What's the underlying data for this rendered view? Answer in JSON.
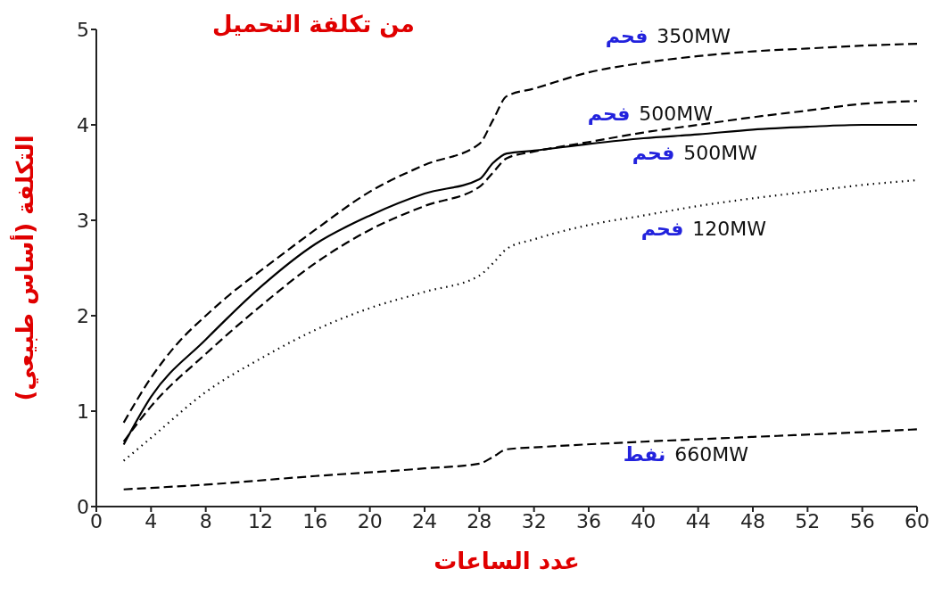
{
  "chart_data": {
    "type": "line",
    "title": "من تكلفة التحميل",
    "xlabel": "عدد الساعات",
    "ylabel": "التكلفة (أساس طبيعي)",
    "xlim": [
      0,
      60
    ],
    "xticks": [
      0,
      4,
      8,
      12,
      16,
      20,
      24,
      28,
      32,
      36,
      40,
      44,
      48,
      52,
      56,
      60
    ],
    "ylim": [
      0,
      5
    ],
    "yticks": [
      0,
      1,
      2,
      3,
      4,
      5
    ],
    "grid": false,
    "legend": false,
    "marker": "none",
    "series": [
      {
        "name": "فحم 350MW",
        "color": "#000000",
        "line_style": "dashed",
        "x": [
          2,
          4,
          6,
          8,
          10,
          12,
          16,
          20,
          24,
          28,
          29,
          30,
          32,
          36,
          40,
          44,
          48,
          52,
          56,
          60
        ],
        "values": [
          0.88,
          1.35,
          1.72,
          2.0,
          2.25,
          2.47,
          2.9,
          3.3,
          3.58,
          3.8,
          4.05,
          4.3,
          4.38,
          4.55,
          4.65,
          4.72,
          4.77,
          4.8,
          4.83,
          4.85
        ]
      },
      {
        "name": "فحم 500MW",
        "color": "#000000",
        "line_style": "dashed",
        "x": [
          2,
          4,
          8,
          12,
          16,
          20,
          24,
          28,
          29,
          30,
          32,
          36,
          40,
          44,
          48,
          52,
          56,
          60
        ],
        "values": [
          0.68,
          1.05,
          1.6,
          2.1,
          2.55,
          2.9,
          3.15,
          3.35,
          3.5,
          3.65,
          3.72,
          3.82,
          3.92,
          4.0,
          4.08,
          4.15,
          4.22,
          4.25
        ]
      },
      {
        "name": "فحم 500MW",
        "color": "#000000",
        "line_style": "solid",
        "x": [
          2,
          4,
          8,
          12,
          16,
          20,
          24,
          28,
          29,
          30,
          32,
          36,
          40,
          44,
          48,
          52,
          56,
          60
        ],
        "values": [
          0.65,
          1.15,
          1.75,
          2.3,
          2.75,
          3.05,
          3.28,
          3.43,
          3.6,
          3.7,
          3.73,
          3.8,
          3.86,
          3.9,
          3.95,
          3.98,
          4.0,
          4.0
        ]
      },
      {
        "name": "فحم 120MW",
        "color": "#000000",
        "line_style": "dotted",
        "x": [
          2,
          4,
          8,
          12,
          16,
          20,
          24,
          28,
          29,
          30,
          32,
          36,
          40,
          44,
          48,
          52,
          56,
          60
        ],
        "values": [
          0.48,
          0.72,
          1.2,
          1.55,
          1.85,
          2.08,
          2.25,
          2.42,
          2.55,
          2.7,
          2.8,
          2.95,
          3.05,
          3.15,
          3.23,
          3.3,
          3.37,
          3.42
        ]
      },
      {
        "name": "نفط 660MW",
        "color": "#000000",
        "line_style": "dashed",
        "x": [
          2,
          8,
          16,
          24,
          28,
          29,
          30,
          32,
          40,
          48,
          56,
          60
        ],
        "values": [
          0.18,
          0.23,
          0.32,
          0.4,
          0.45,
          0.52,
          0.6,
          0.62,
          0.68,
          0.73,
          0.78,
          0.81
        ]
      }
    ]
  }
}
